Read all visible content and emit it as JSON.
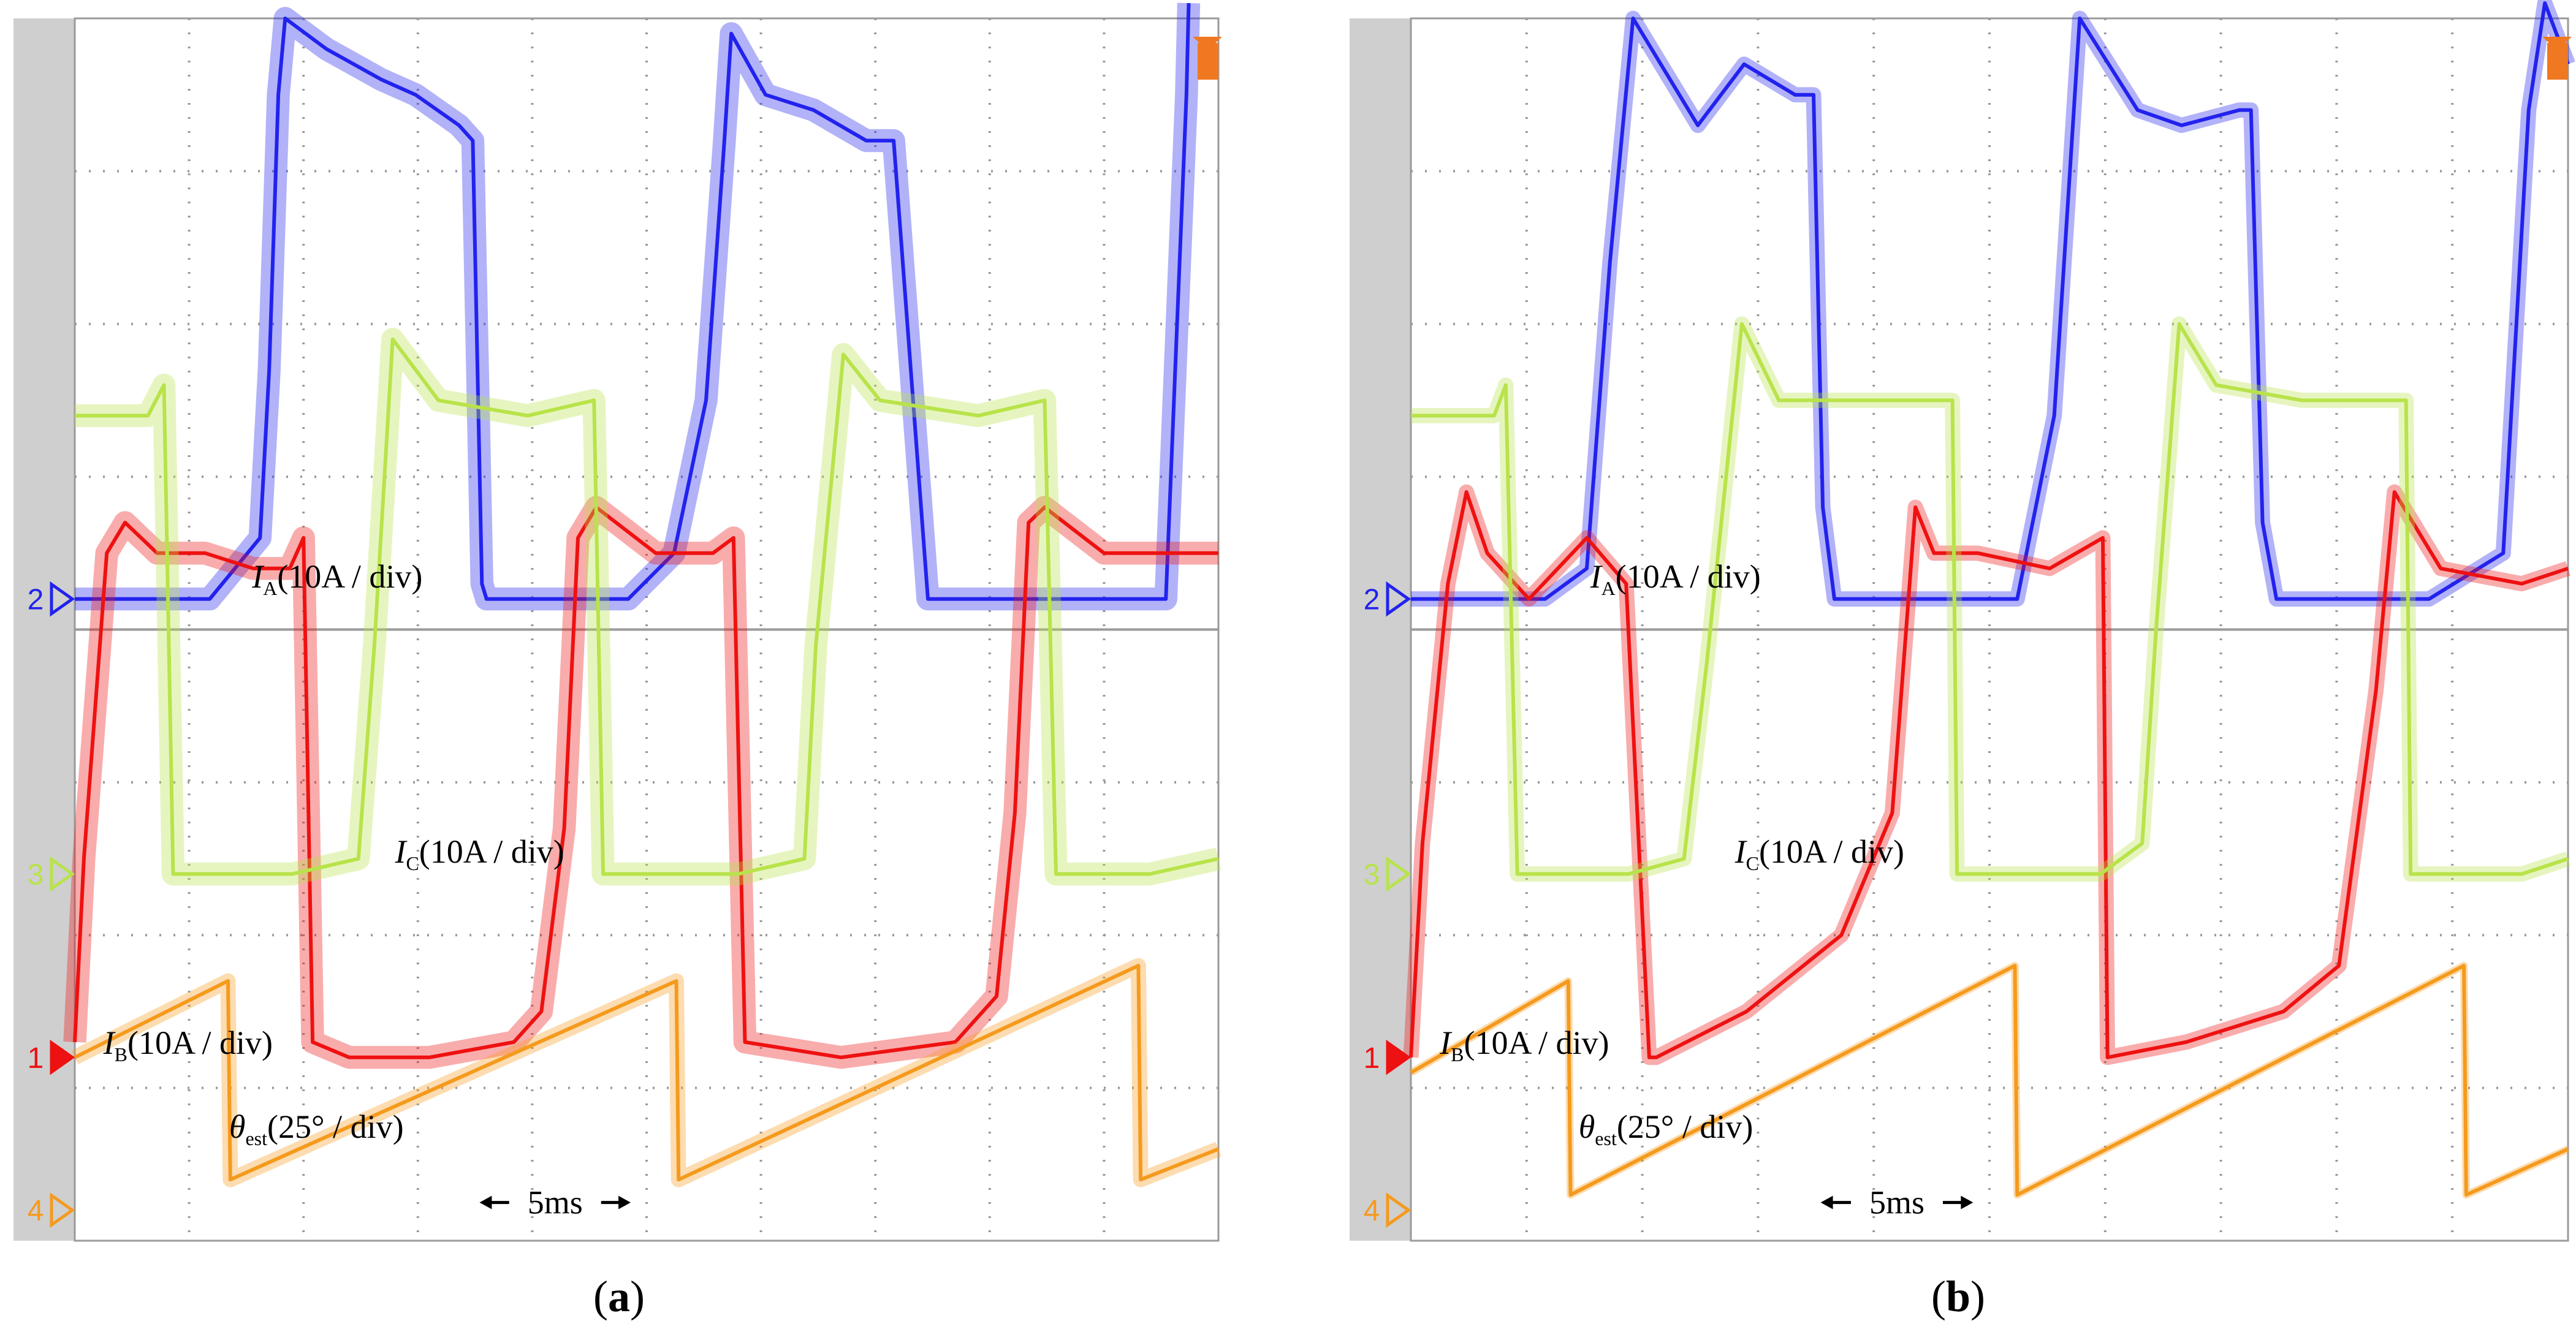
{
  "colors": {
    "background": "#ffffff",
    "strip": "#cfcfcf",
    "grid": "#9a9a9a",
    "channel_2": "#2222ee",
    "channel_1": "#ee1111",
    "channel_3": "#b8e34a",
    "channel_4": "#f59a1d",
    "trigger": "#f07820"
  },
  "chart_data": [
    {
      "type": "line",
      "panel": "a",
      "caption_open": "(",
      "caption_letter": "a",
      "caption_close": ")",
      "time_scale_label": "5ms",
      "x_unit": "ms",
      "xlim": [
        0,
        50
      ],
      "divisions": {
        "x": 10,
        "y": 8
      },
      "series": [
        {
          "name": "I_A",
          "channel": "2",
          "label_symbol": "I",
          "label_subscript": "A",
          "label_scale": "(10A / div)",
          "color": "#2222ee",
          "ground_div": 4.2,
          "x": [
            0,
            5.9,
            8.1,
            8.5,
            8.9,
            9.2,
            11,
            13.4,
            14.9,
            16.8,
            17.4,
            17.8,
            18,
            18.5,
            20.5,
            22.5,
            24.2,
            26.2,
            27.6,
            28.4,
            28.7,
            30.2,
            32.3,
            34.6,
            35.8,
            37.3,
            39.6,
            43.2,
            44.8,
            47.7,
            48.6,
            48.7
          ],
          "y": [
            0,
            0,
            0.4,
            1.5,
            3.3,
            3.8,
            3.6,
            3.4,
            3.3,
            3.1,
            3.0,
            0.1,
            0,
            0,
            0,
            0,
            0,
            0.3,
            1.3,
            3.0,
            3.7,
            3.3,
            3.2,
            3.0,
            3.0,
            0,
            0,
            0,
            0,
            0,
            3.3,
            3.9
          ],
          "noise_band_div": 0.15
        },
        {
          "name": "I_B",
          "channel": "1",
          "label_symbol": "I",
          "label_subscript": "B",
          "label_scale": "(10A / div)",
          "color": "#ee1111",
          "ground_div": 1.2,
          "x": [
            0,
            0.4,
            1.4,
            2.2,
            3.6,
            5.7,
            7.8,
            9.4,
            10,
            10.4,
            12,
            15.5,
            19.2,
            20.4,
            21.4,
            22,
            22.8,
            25.4,
            27.9,
            28.8,
            29.3,
            33.5,
            38.5,
            40.3,
            41.1,
            41.7,
            42.4,
            45,
            48,
            50
          ],
          "y": [
            0.1,
            1.3,
            3.3,
            3.5,
            3.3,
            3.3,
            3.2,
            3.2,
            3.4,
            0.1,
            0,
            0,
            0.1,
            0.3,
            1.5,
            3.4,
            3.6,
            3.3,
            3.3,
            3.4,
            0.1,
            0,
            0.1,
            0.4,
            1.6,
            3.5,
            3.6,
            3.3,
            3.3,
            3.3
          ],
          "noise_band_div": 0.15
        },
        {
          "name": "I_C",
          "channel": "3",
          "label_symbol": "I",
          "label_subscript": "C",
          "label_scale": "(10A / div)",
          "color": "#b8e34a",
          "ground_div": 2.4,
          "x": [
            0,
            3.2,
            3.9,
            4.3,
            9.5,
            12.4,
            13.1,
            13.9,
            15.9,
            19.8,
            22.7,
            23.1,
            29,
            31.9,
            32.4,
            33.6,
            35.2,
            39.5,
            42.4,
            42.9,
            47,
            50
          ],
          "y": [
            3.0,
            3.0,
            3.2,
            0,
            0,
            0.1,
            1.5,
            3.5,
            3.1,
            3.0,
            3.1,
            0,
            0,
            0.1,
            1.5,
            3.4,
            3.1,
            3.0,
            3.1,
            0,
            0,
            0.1
          ],
          "noise_band_div": 0.15
        },
        {
          "name": "θ_est",
          "channel": "4",
          "label_symbol": "θ",
          "label_subscript": "est",
          "label_scale": "(25° / div)",
          "color": "#f59a1d",
          "ground_div": 0.2,
          "x": [
            0,
            6.7,
            6.8,
            26.3,
            26.4,
            46.5,
            46.6,
            50
          ],
          "y": [
            1.0,
            1.5,
            0.2,
            1.5,
            0.2,
            1.6,
            0.2,
            0.4
          ],
          "noise_band_div": 0.1
        }
      ]
    },
    {
      "type": "line",
      "panel": "b",
      "caption_open": "(",
      "caption_letter": "b",
      "caption_close": ")",
      "time_scale_label": "5ms",
      "x_unit": "ms",
      "xlim": [
        0,
        50
      ],
      "divisions": {
        "x": 10,
        "y": 8
      },
      "series": [
        {
          "name": "I_A",
          "channel": "2",
          "label_symbol": "I",
          "label_subscript": "A",
          "label_scale": "(10A / div)",
          "color": "#2222ee",
          "ground_div": 4.2,
          "x": [
            0,
            5.8,
            7.6,
            8.6,
            9.6,
            12.4,
            14.4,
            16.6,
            17.4,
            17.8,
            18.3,
            18.8,
            21.8,
            24.4,
            26.2,
            27.8,
            28.9,
            31.4,
            33.3,
            35.8,
            36.3,
            36.8,
            37.4,
            41,
            44,
            47.2,
            48.3,
            49,
            50
          ],
          "y": [
            0,
            0,
            0.2,
            2.2,
            3.8,
            3.1,
            3.5,
            3.3,
            3.3,
            0.6,
            0,
            0,
            0,
            0,
            0,
            1.2,
            3.8,
            3.2,
            3.1,
            3.2,
            3.2,
            0.5,
            0,
            0,
            0,
            0.3,
            3.2,
            3.9,
            3.5
          ],
          "noise_band_div": 0.1
        },
        {
          "name": "I_B",
          "channel": "1",
          "label_symbol": "I",
          "label_subscript": "B",
          "label_scale": "(10A / div)",
          "color": "#ee1111",
          "ground_div": 1.2,
          "x": [
            0,
            0.5,
            1.6,
            2.4,
            3.3,
            5.1,
            7.6,
            9.3,
            10.3,
            10.6,
            14.5,
            18.6,
            20.8,
            21.8,
            22.6,
            24.5,
            27.6,
            29.9,
            30.1,
            33.5,
            37.7,
            40.1,
            41.7,
            42.5,
            44.5,
            48,
            50
          ],
          "y": [
            0,
            1.4,
            3.1,
            3.7,
            3.3,
            3.0,
            3.4,
            3.1,
            0,
            0,
            0.3,
            0.8,
            1.6,
            3.6,
            3.3,
            3.3,
            3.2,
            3.4,
            0,
            0.1,
            0.3,
            0.6,
            2.4,
            3.7,
            3.2,
            3.1,
            3.2
          ],
          "noise_band_div": 0.1
        },
        {
          "name": "I_C",
          "channel": "3",
          "label_symbol": "I",
          "label_subscript": "C",
          "label_scale": "(10A / div)",
          "color": "#b8e34a",
          "ground_div": 2.4,
          "x": [
            0,
            3.6,
            4.1,
            4.6,
            9.4,
            11.8,
            12.8,
            14.3,
            15.9,
            19,
            23.4,
            23.6,
            29.8,
            31.6,
            32.2,
            33.2,
            34.8,
            38.5,
            43,
            43.2,
            48,
            50
          ],
          "y": [
            3.0,
            3.0,
            3.2,
            0,
            0,
            0.1,
            1.4,
            3.6,
            3.1,
            3.1,
            3.1,
            0,
            0,
            0.2,
            1.6,
            3.6,
            3.2,
            3.1,
            3.1,
            0,
            0,
            0.1
          ],
          "noise_band_div": 0.1
        },
        {
          "name": "θ_est",
          "channel": "4",
          "label_symbol": "θ",
          "label_subscript": "est",
          "label_scale": "(25° / div)",
          "color": "#f59a1d",
          "ground_div": 0.2,
          "x": [
            0,
            6.8,
            6.9,
            26.1,
            26.2,
            45.5,
            45.6,
            50
          ],
          "y": [
            0.9,
            1.5,
            0.1,
            1.6,
            0.1,
            1.6,
            0.1,
            0.4
          ],
          "noise_band_div": 0.05
        }
      ]
    }
  ]
}
